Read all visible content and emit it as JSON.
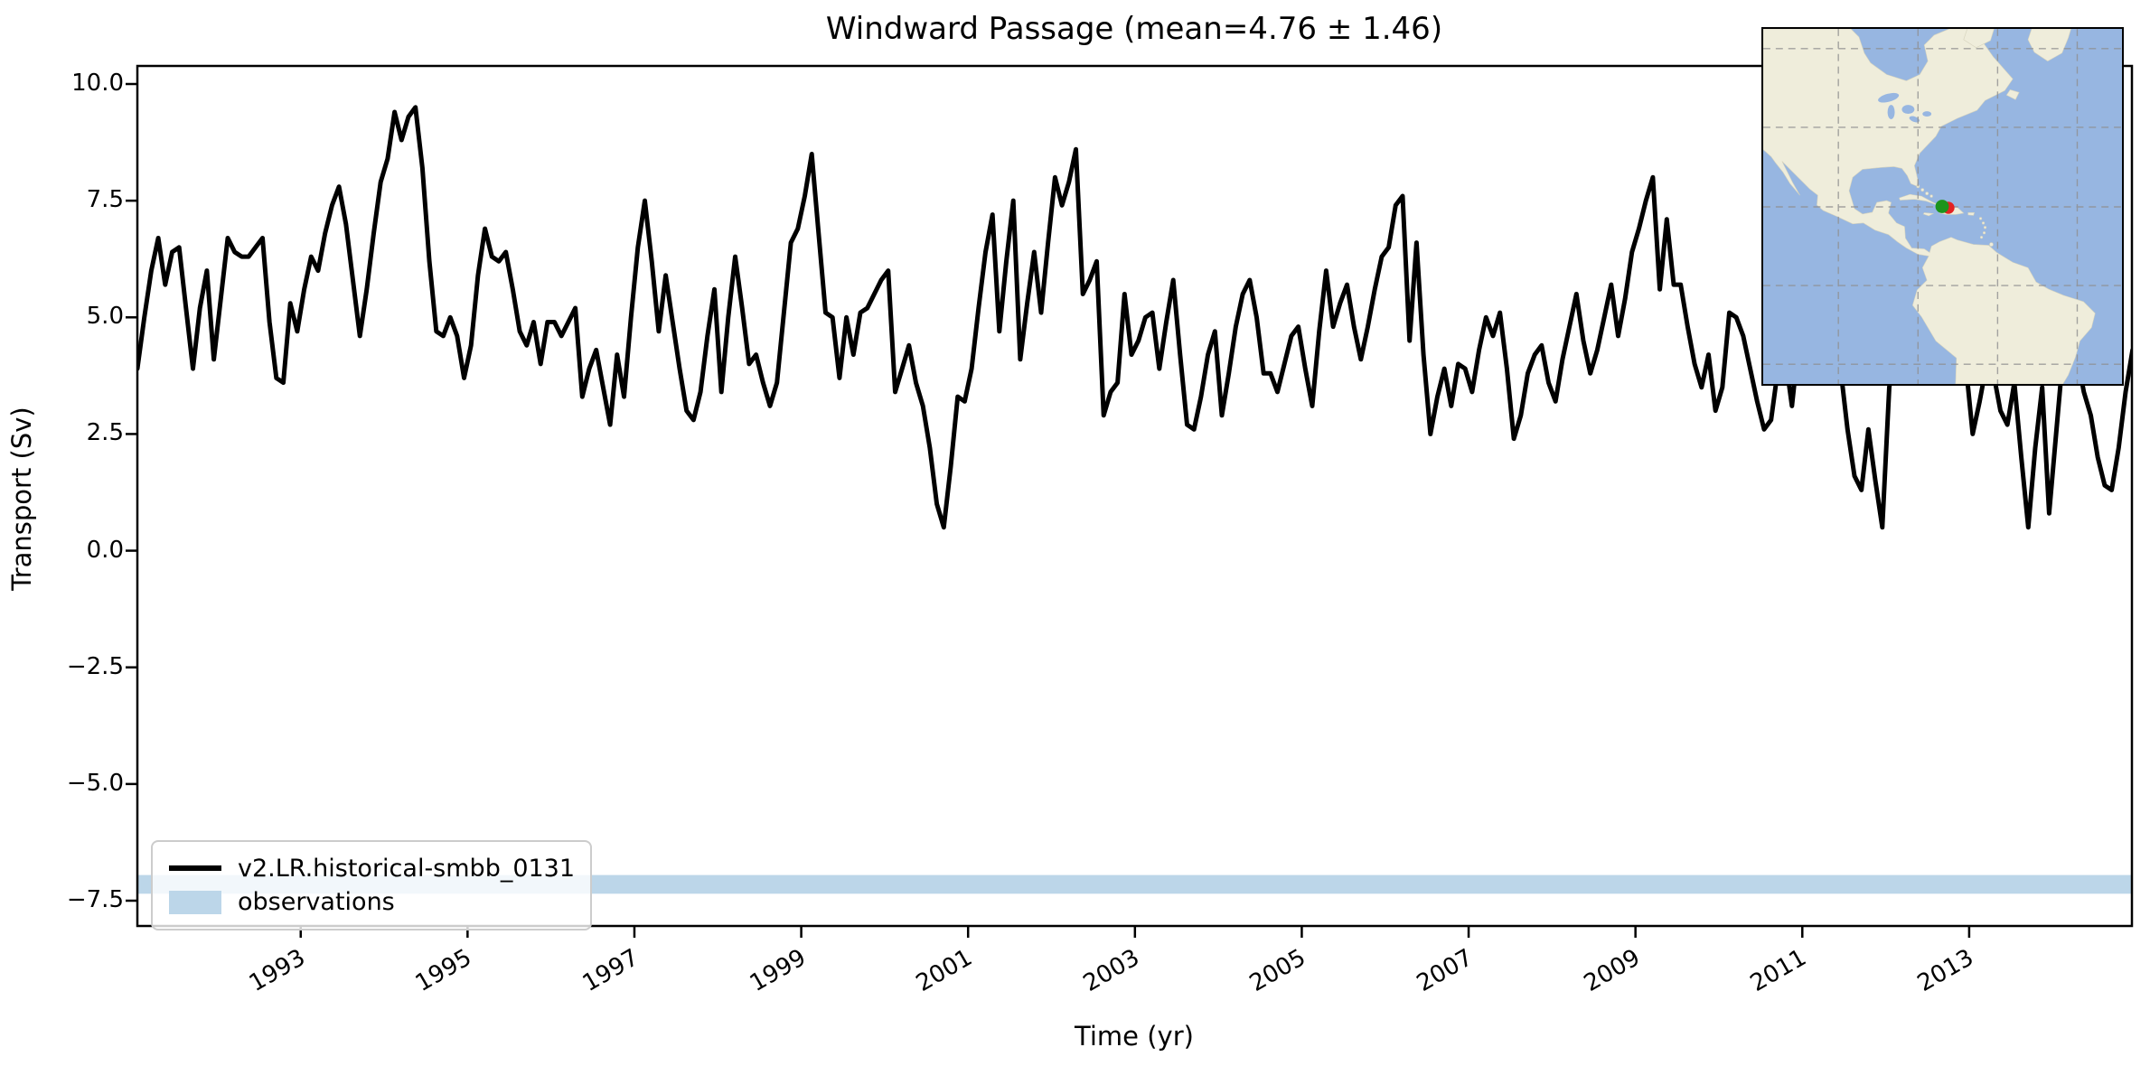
{
  "title": "Windward Passage (mean=4.76 ± 1.46)",
  "axes": {
    "xlabel": "Time (yr)",
    "ylabel": "Transport (Sv)"
  },
  "legend": {
    "items": [
      {
        "label": "v2.LR.historical-smbb_0131",
        "type": "line",
        "color": "#000000"
      },
      {
        "label": "observations",
        "type": "patch",
        "color": "#bcd6e9"
      }
    ]
  },
  "colors": {
    "series_line": "#000000",
    "observations_band": "#bcd6e9",
    "map_ocean": "#97b6e1",
    "map_land": "#efeddb",
    "map_grid": "#8f8f8f",
    "marker_green": "#1c941c",
    "marker_red": "#e32222"
  },
  "inset_map": {
    "description": "Map of the Americas with green and red markers at the Windward Passage between Cuba and Hispaniola",
    "marker_green": "#1c941c",
    "marker_red": "#e32222"
  },
  "chart_data": {
    "type": "line",
    "title": "Windward Passage (mean=4.76 ± 1.46)",
    "xlabel": "Time (yr)",
    "ylabel": "Transport (Sv)",
    "mean": 4.76,
    "std": 1.46,
    "xlim": [
      1991.042,
      2014.958
    ],
    "ylim": [
      -8.03,
      10.39
    ],
    "x_ticks": [
      1993,
      1995,
      1997,
      1999,
      2001,
      2003,
      2005,
      2007,
      2009,
      2011,
      2013
    ],
    "y_ticks": [
      10.0,
      7.5,
      5.0,
      2.5,
      0.0,
      -2.5,
      -5.0,
      -7.5
    ],
    "grid": false,
    "legend_position": "lower left",
    "x_start": 1991.042,
    "x_step": 0.083333,
    "observations_band": {
      "label": "observations",
      "y_min": -7.35,
      "y_max": -6.95,
      "color": "#bcd6e9"
    },
    "series": [
      {
        "name": "v2.LR.historical-smbb_0131",
        "color": "#000000",
        "values": [
          3.9,
          5.0,
          6.0,
          6.7,
          5.7,
          6.4,
          6.5,
          5.2,
          3.9,
          5.2,
          6.0,
          4.1,
          5.4,
          6.7,
          6.4,
          6.3,
          6.3,
          6.5,
          6.7,
          4.9,
          3.7,
          3.6,
          5.3,
          4.7,
          5.6,
          6.3,
          6.0,
          6.8,
          7.4,
          7.8,
          7.0,
          5.8,
          4.6,
          5.6,
          6.8,
          7.9,
          8.4,
          9.4,
          8.8,
          9.3,
          9.5,
          8.2,
          6.2,
          4.7,
          4.6,
          5.0,
          4.6,
          3.7,
          4.4,
          5.9,
          6.9,
          6.3,
          6.2,
          6.4,
          5.6,
          4.7,
          4.4,
          4.9,
          4.0,
          4.9,
          4.9,
          4.6,
          4.9,
          5.2,
          3.3,
          3.9,
          4.3,
          3.5,
          2.7,
          4.2,
          3.3,
          5.0,
          6.5,
          7.5,
          6.2,
          4.7,
          5.9,
          4.9,
          3.9,
          3.0,
          2.8,
          3.4,
          4.6,
          5.6,
          3.4,
          5.0,
          6.3,
          5.2,
          4.0,
          4.2,
          3.6,
          3.1,
          3.6,
          5.1,
          6.6,
          6.9,
          7.6,
          8.5,
          6.8,
          5.1,
          5.0,
          3.7,
          5.0,
          4.2,
          5.1,
          5.2,
          5.5,
          5.8,
          6.0,
          3.4,
          3.9,
          4.4,
          3.6,
          3.1,
          2.2,
          1.0,
          0.5,
          1.8,
          3.3,
          3.2,
          3.9,
          5.2,
          6.4,
          7.2,
          4.7,
          6.2,
          7.5,
          4.1,
          5.3,
          6.4,
          5.1,
          6.6,
          8.0,
          7.4,
          7.9,
          8.6,
          5.5,
          5.8,
          6.2,
          2.9,
          3.4,
          3.6,
          5.5,
          4.2,
          4.5,
          5.0,
          5.1,
          3.9,
          4.9,
          5.8,
          4.2,
          2.7,
          2.6,
          3.3,
          4.2,
          4.7,
          2.9,
          3.8,
          4.8,
          5.5,
          5.8,
          5.0,
          3.8,
          3.8,
          3.4,
          4.0,
          4.6,
          4.8,
          3.9,
          3.1,
          4.7,
          6.0,
          4.8,
          5.3,
          5.7,
          4.8,
          4.1,
          4.8,
          5.6,
          6.3,
          6.5,
          7.4,
          7.6,
          4.5,
          6.6,
          4.2,
          2.5,
          3.3,
          3.9,
          3.1,
          4.0,
          3.9,
          3.4,
          4.3,
          5.0,
          4.6,
          5.1,
          3.9,
          2.4,
          2.9,
          3.8,
          4.2,
          4.4,
          3.6,
          3.2,
          4.1,
          4.8,
          5.5,
          4.5,
          3.8,
          4.3,
          5.0,
          5.7,
          4.6,
          5.4,
          6.4,
          6.9,
          7.5,
          8.0,
          5.6,
          7.1,
          5.7,
          5.7,
          4.8,
          4.0,
          3.5,
          4.2,
          3.0,
          3.5,
          5.1,
          5.0,
          4.6,
          3.9,
          3.2,
          2.6,
          2.8,
          3.9,
          4.2,
          3.1,
          4.5,
          5.2,
          5.8,
          5.5,
          4.8,
          4.4,
          3.9,
          2.6,
          1.6,
          1.3,
          2.6,
          1.5,
          0.5,
          3.5,
          4.5,
          5.5,
          6.2,
          5.6,
          6.0,
          5.2,
          4.6,
          4.2,
          4.8,
          5.4,
          4.0,
          2.5,
          3.2,
          4.0,
          3.8,
          3.0,
          2.7,
          3.6,
          2.0,
          0.5,
          2.2,
          3.5,
          0.8,
          2.5,
          4.2,
          4.8,
          4.2,
          3.4,
          2.9,
          2.0,
          1.4,
          1.3,
          2.2,
          3.4,
          4.3
        ]
      }
    ]
  }
}
